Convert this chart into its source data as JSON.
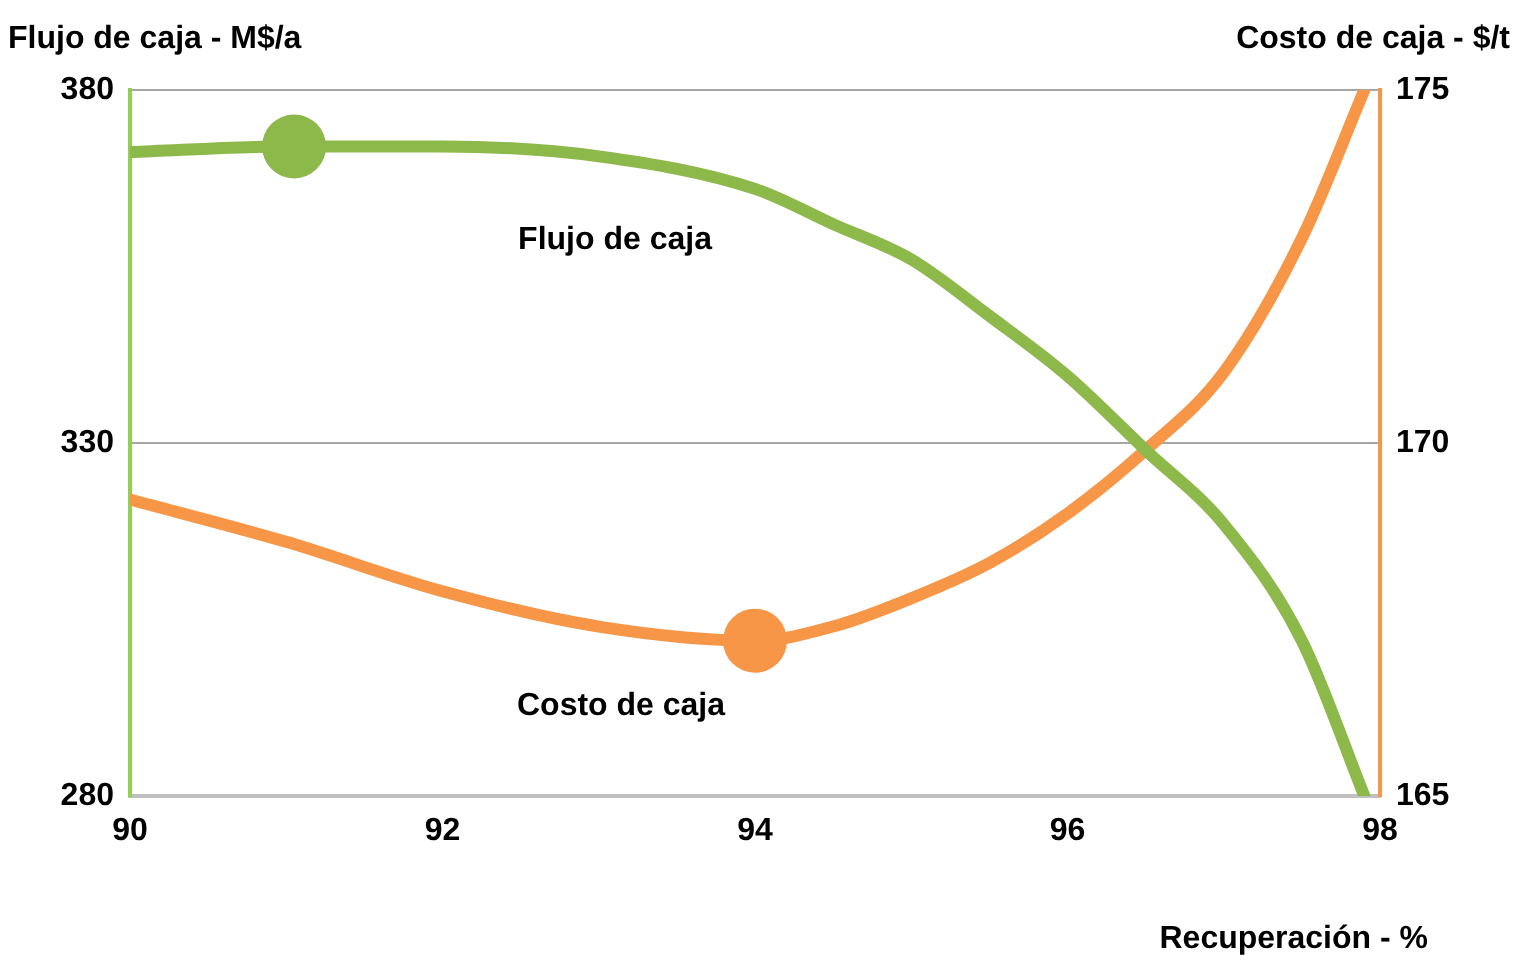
{
  "chart_data": {
    "type": "line",
    "xlabel": "Recuperación - %",
    "ylabel": "Flujo de caja - M$/a",
    "y2label": "Costo de caja - $/t",
    "xlim": [
      90,
      98
    ],
    "xticks": [
      90,
      92,
      94,
      96,
      98
    ],
    "ylim": [
      280,
      380
    ],
    "yticks": [
      280,
      330,
      380
    ],
    "y2lim": [
      165,
      175
    ],
    "y2ticks": [
      165,
      170,
      175
    ],
    "grid": "y",
    "legend": false,
    "marker": "none",
    "line_style": "solid",
    "series": [
      {
        "name": "Flujo de caja",
        "color": "#8db84a",
        "x": [
          90,
          91,
          92,
          93,
          94,
          94.5,
          95,
          95.5,
          96,
          96.5,
          97,
          97.5,
          97.9
        ],
        "values": [
          371.2,
          372,
          372,
          370.6,
          366,
          361,
          356,
          348,
          339.5,
          329,
          318.5,
          302,
          280
        ]
      },
      {
        "name": "Costo de caja",
        "color": "#f79646",
        "axis": "y2",
        "x": [
          90,
          91,
          92,
          93,
          94,
          94.5,
          95,
          95.5,
          96,
          96.5,
          97,
          97.5,
          97.9
        ],
        "values": [
          169.2,
          168.6,
          167.9,
          167.4,
          167.2,
          167.4,
          167.8,
          168.3,
          169,
          169.9,
          171,
          172.9,
          175
        ]
      },
      {
        "type": "scatter",
        "color": "#8db84a",
        "marker": "circle",
        "x": [
          91.05
        ],
        "values": [
          372
        ]
      },
      {
        "type": "scatter",
        "color": "#f79646",
        "marker": "circle",
        "axis": "y2",
        "x": [
          94
        ],
        "values": [
          167.2
        ]
      }
    ]
  }
}
